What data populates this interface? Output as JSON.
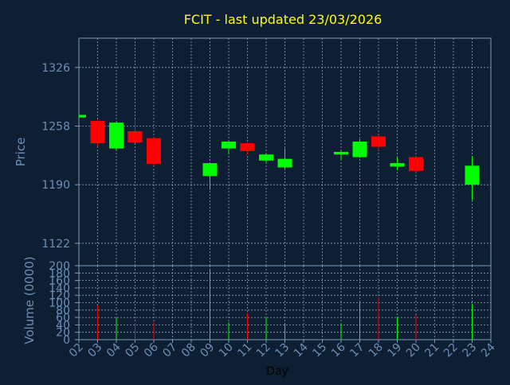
{
  "chart_data": {
    "type": "candlestick",
    "title": "FCIT - last updated 23/03/2026",
    "colors": {
      "background": "#0f1f33",
      "axis": "#7a9bbd",
      "grid": "#8aa3bf",
      "title": "#ffff00",
      "label": "#6b8fb5",
      "up": "#00ff00",
      "down": "#ff0000"
    },
    "x_tick_labels": [
      "02",
      "03",
      "04",
      "05",
      "06",
      "07",
      "08",
      "09",
      "10",
      "11",
      "12",
      "13",
      "14",
      "15",
      "16",
      "17",
      "18",
      "19",
      "20",
      "21",
      "22",
      "23",
      "24"
    ],
    "xlabel": "Day",
    "price": {
      "ylabel": "Price",
      "ylim": [
        1096,
        1360
      ],
      "yticks": [
        1122,
        1190,
        1258,
        1326
      ],
      "candles": [
        {
          "x": "02",
          "open": 1268,
          "high": 1271,
          "low": 1266,
          "close": 1271
        },
        {
          "x": "03",
          "open": 1264,
          "high": 1265,
          "low": 1234,
          "close": 1238
        },
        {
          "x": "04",
          "open": 1232,
          "high": 1263,
          "low": 1230,
          "close": 1262
        },
        {
          "x": "05",
          "open": 1252,
          "high": 1266,
          "low": 1238,
          "close": 1239
        },
        {
          "x": "06",
          "open": 1244,
          "high": 1246,
          "low": 1212,
          "close": 1214
        },
        {
          "x": "09",
          "open": 1200,
          "high": 1215,
          "low": 1184,
          "close": 1215
        },
        {
          "x": "10",
          "open": 1232,
          "high": 1240,
          "low": 1225,
          "close": 1240
        },
        {
          "x": "11",
          "open": 1238,
          "high": 1239,
          "low": 1225,
          "close": 1229
        },
        {
          "x": "12",
          "open": 1218,
          "high": 1226,
          "low": 1215,
          "close": 1225
        },
        {
          "x": "13",
          "open": 1210,
          "high": 1232,
          "low": 1208,
          "close": 1220
        },
        {
          "x": "16",
          "open": 1225,
          "high": 1230,
          "low": 1218,
          "close": 1228
        },
        {
          "x": "17",
          "open": 1222,
          "high": 1243,
          "low": 1221,
          "close": 1240
        },
        {
          "x": "18",
          "open": 1246,
          "high": 1248,
          "low": 1230,
          "close": 1234
        },
        {
          "x": "19",
          "open": 1211,
          "high": 1222,
          "low": 1207,
          "close": 1215
        },
        {
          "x": "20",
          "open": 1222,
          "high": 1223,
          "low": 1204,
          "close": 1206
        },
        {
          "x": "23",
          "open": 1190,
          "high": 1223,
          "low": 1172,
          "close": 1212
        }
      ]
    },
    "volume": {
      "ylabel": "Volume (0000)",
      "ylim": [
        0,
        200
      ],
      "yticks": [
        0,
        20,
        40,
        60,
        80,
        100,
        120,
        140,
        160,
        180,
        200
      ],
      "bars": [
        {
          "x": "03",
          "value": 93,
          "direction": "down"
        },
        {
          "x": "04",
          "value": 58,
          "direction": "up"
        },
        {
          "x": "05",
          "value": 45,
          "direction": "down"
        },
        {
          "x": "06",
          "value": 48,
          "direction": "down"
        },
        {
          "x": "09",
          "value": 192,
          "direction": "up"
        },
        {
          "x": "10",
          "value": 47,
          "direction": "up"
        },
        {
          "x": "11",
          "value": 72,
          "direction": "down"
        },
        {
          "x": "12",
          "value": 60,
          "direction": "up"
        },
        {
          "x": "13",
          "value": 45,
          "direction": "up"
        },
        {
          "x": "16",
          "value": 45,
          "direction": "up"
        },
        {
          "x": "17",
          "value": 100,
          "direction": "up"
        },
        {
          "x": "18",
          "value": 115,
          "direction": "down"
        },
        {
          "x": "19",
          "value": 60,
          "direction": "up"
        },
        {
          "x": "20",
          "value": 66,
          "direction": "down"
        },
        {
          "x": "23",
          "value": 97,
          "direction": "up"
        }
      ]
    }
  }
}
